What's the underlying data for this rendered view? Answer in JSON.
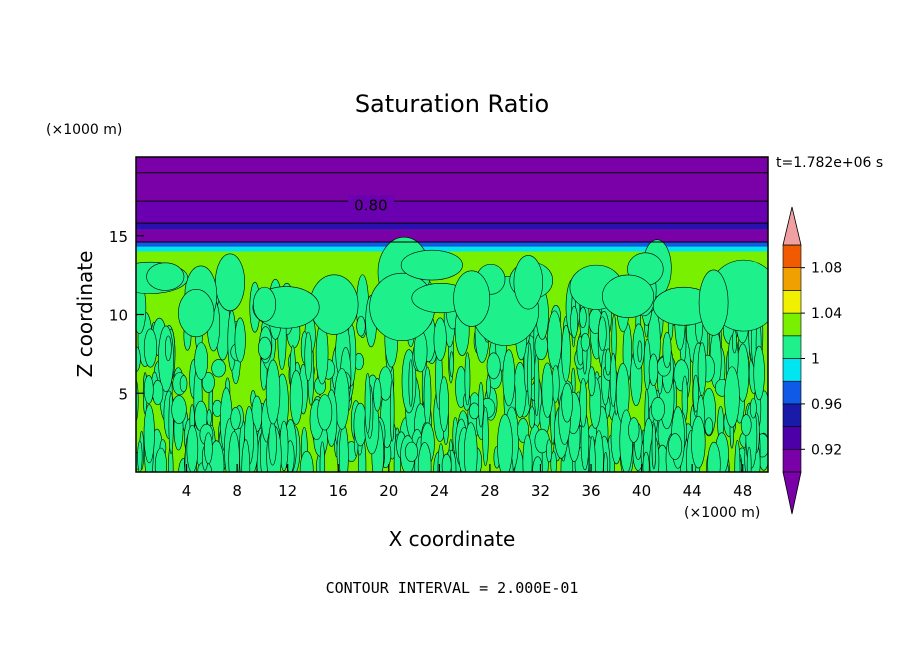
{
  "chart_data": {
    "type": "heatmap",
    "title": "Saturation Ratio",
    "xlabel": "X coordinate",
    "ylabel": "Z coordinate",
    "x_unit_label": "(×1000 m)",
    "y_unit_label": "(×1000 m)",
    "time_label": "t=1.782e+06 s",
    "footer": "CONTOUR INTERVAL = 2.000E-01",
    "xlim": [
      0,
      50
    ],
    "ylim": [
      0,
      20
    ],
    "x_ticks": [
      4,
      8,
      12,
      16,
      20,
      24,
      28,
      32,
      36,
      40,
      44,
      48
    ],
    "y_ticks": [
      5,
      10,
      15
    ],
    "contour_labels": [
      {
        "text": "0.80",
        "x": 17,
        "z": 17
      }
    ],
    "colorbar": {
      "levels": [
        0.9,
        0.92,
        0.94,
        0.96,
        0.98,
        1.0,
        1.02,
        1.04,
        1.06,
        1.08,
        1.1
      ],
      "tick_labels": [
        {
          "value": 0.92,
          "text": "0.92"
        },
        {
          "value": 0.96,
          "text": "0.96"
        },
        {
          "value": 1.0,
          "text": "1"
        },
        {
          "value": 1.04,
          "text": "1.04"
        },
        {
          "value": 1.08,
          "text": "1.08"
        }
      ],
      "colors": [
        "#7a00a8",
        "#4d00a8",
        "#1a1aa8",
        "#0f5ae6",
        "#00e6f0",
        "#1ef08c",
        "#78f000",
        "#f0f000",
        "#f0a000",
        "#f05a00",
        "#f03c3c"
      ],
      "overflow_color": "#f0a0a0",
      "underflow_color": "#7a00a8"
    },
    "field_regions": [
      {
        "z_range": [
          17.2,
          20
        ],
        "value": 0.8,
        "color": "#7a00a8"
      },
      {
        "z_range": [
          15.8,
          17.2
        ],
        "value": 0.9,
        "color": "#6a00b0"
      },
      {
        "z_range": [
          15.4,
          15.8
        ],
        "value": 0.92,
        "color": "#2a10b0"
      },
      {
        "z_range": [
          14.6,
          15.4
        ],
        "value": 0.9,
        "color": "#7a00a8"
      },
      {
        "z_range": [
          14.3,
          14.6
        ],
        "value": 0.96,
        "color": "#0f5ae6"
      },
      {
        "z_range": [
          14.0,
          14.3
        ],
        "value": 0.98,
        "color": "#00e6f0"
      },
      {
        "z_range": [
          0,
          14.0
        ],
        "value": 1.01,
        "color": "#78f000",
        "patches_value": 0.99,
        "patches_color": "#1ef08c"
      }
    ]
  }
}
